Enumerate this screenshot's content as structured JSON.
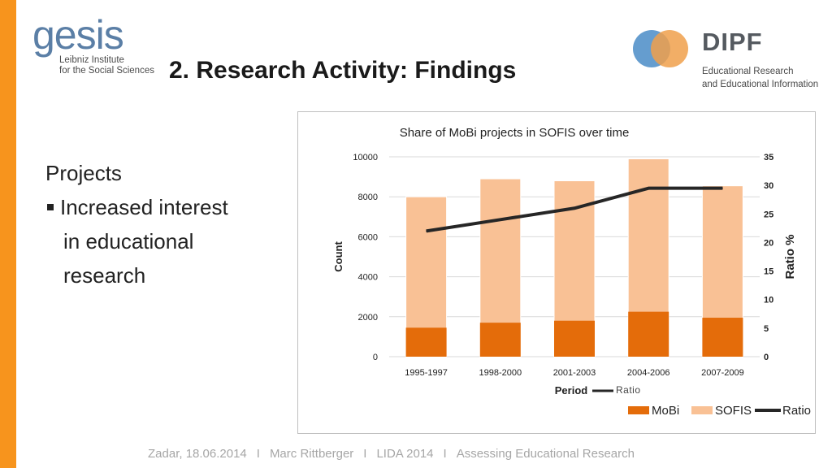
{
  "slide": {
    "title": "2. Research Activity: Findings",
    "content": {
      "heading": "Projects",
      "bullet": "Increased interest",
      "line2": "in educational",
      "line3": "research"
    },
    "footer": {
      "place_date": "Zadar, 18.06.2014",
      "author": "Marc Rittberger",
      "event": "LIDA 2014",
      "topic": "Assessing Educational Research",
      "separator": "I"
    }
  },
  "logos": {
    "gesis": {
      "word": "gesis",
      "line1": "Leibniz Institute",
      "line2": "for the Social Sciences",
      "color": "#5b7fa6"
    },
    "dipf": {
      "word": "DIPF",
      "line1": "Educational Research",
      "line2": "and Educational Information",
      "blue": "#4a8cc7",
      "orange": "#f0a04b"
    }
  },
  "colors": {
    "accent": "#f7941d",
    "mobi": "#e46c0a",
    "sofis": "#f9c195",
    "ratio": "#262626"
  },
  "chart_data": {
    "type": "bar",
    "title": "Share of MoBi projects in SOFIS over time",
    "xlabel": "Period",
    "ylabel": "Count",
    "y2label": "Ratio %",
    "stray_label": "Ratio",
    "categories": [
      "1995-1997",
      "1998-2000",
      "2001-2003",
      "2004-2006",
      "2007-2009"
    ],
    "series": [
      {
        "name": "MoBi",
        "type": "bar",
        "values": [
          1450,
          1700,
          1800,
          2250,
          1950
        ]
      },
      {
        "name": "SOFIS",
        "type": "bar",
        "values": [
          8000,
          8900,
          8800,
          9900,
          8550
        ]
      },
      {
        "name": "Ratio",
        "type": "line",
        "axis": "right",
        "values": [
          22,
          24,
          26,
          29.5,
          29.5
        ]
      }
    ],
    "ylim": [
      0,
      10000
    ],
    "yticks": [
      0,
      2000,
      4000,
      6000,
      8000,
      10000
    ],
    "y2lim": [
      0,
      35
    ],
    "y2ticks": [
      0,
      5,
      10,
      15,
      20,
      25,
      30,
      35
    ],
    "legend_position": "bottom-right",
    "grid": true
  }
}
